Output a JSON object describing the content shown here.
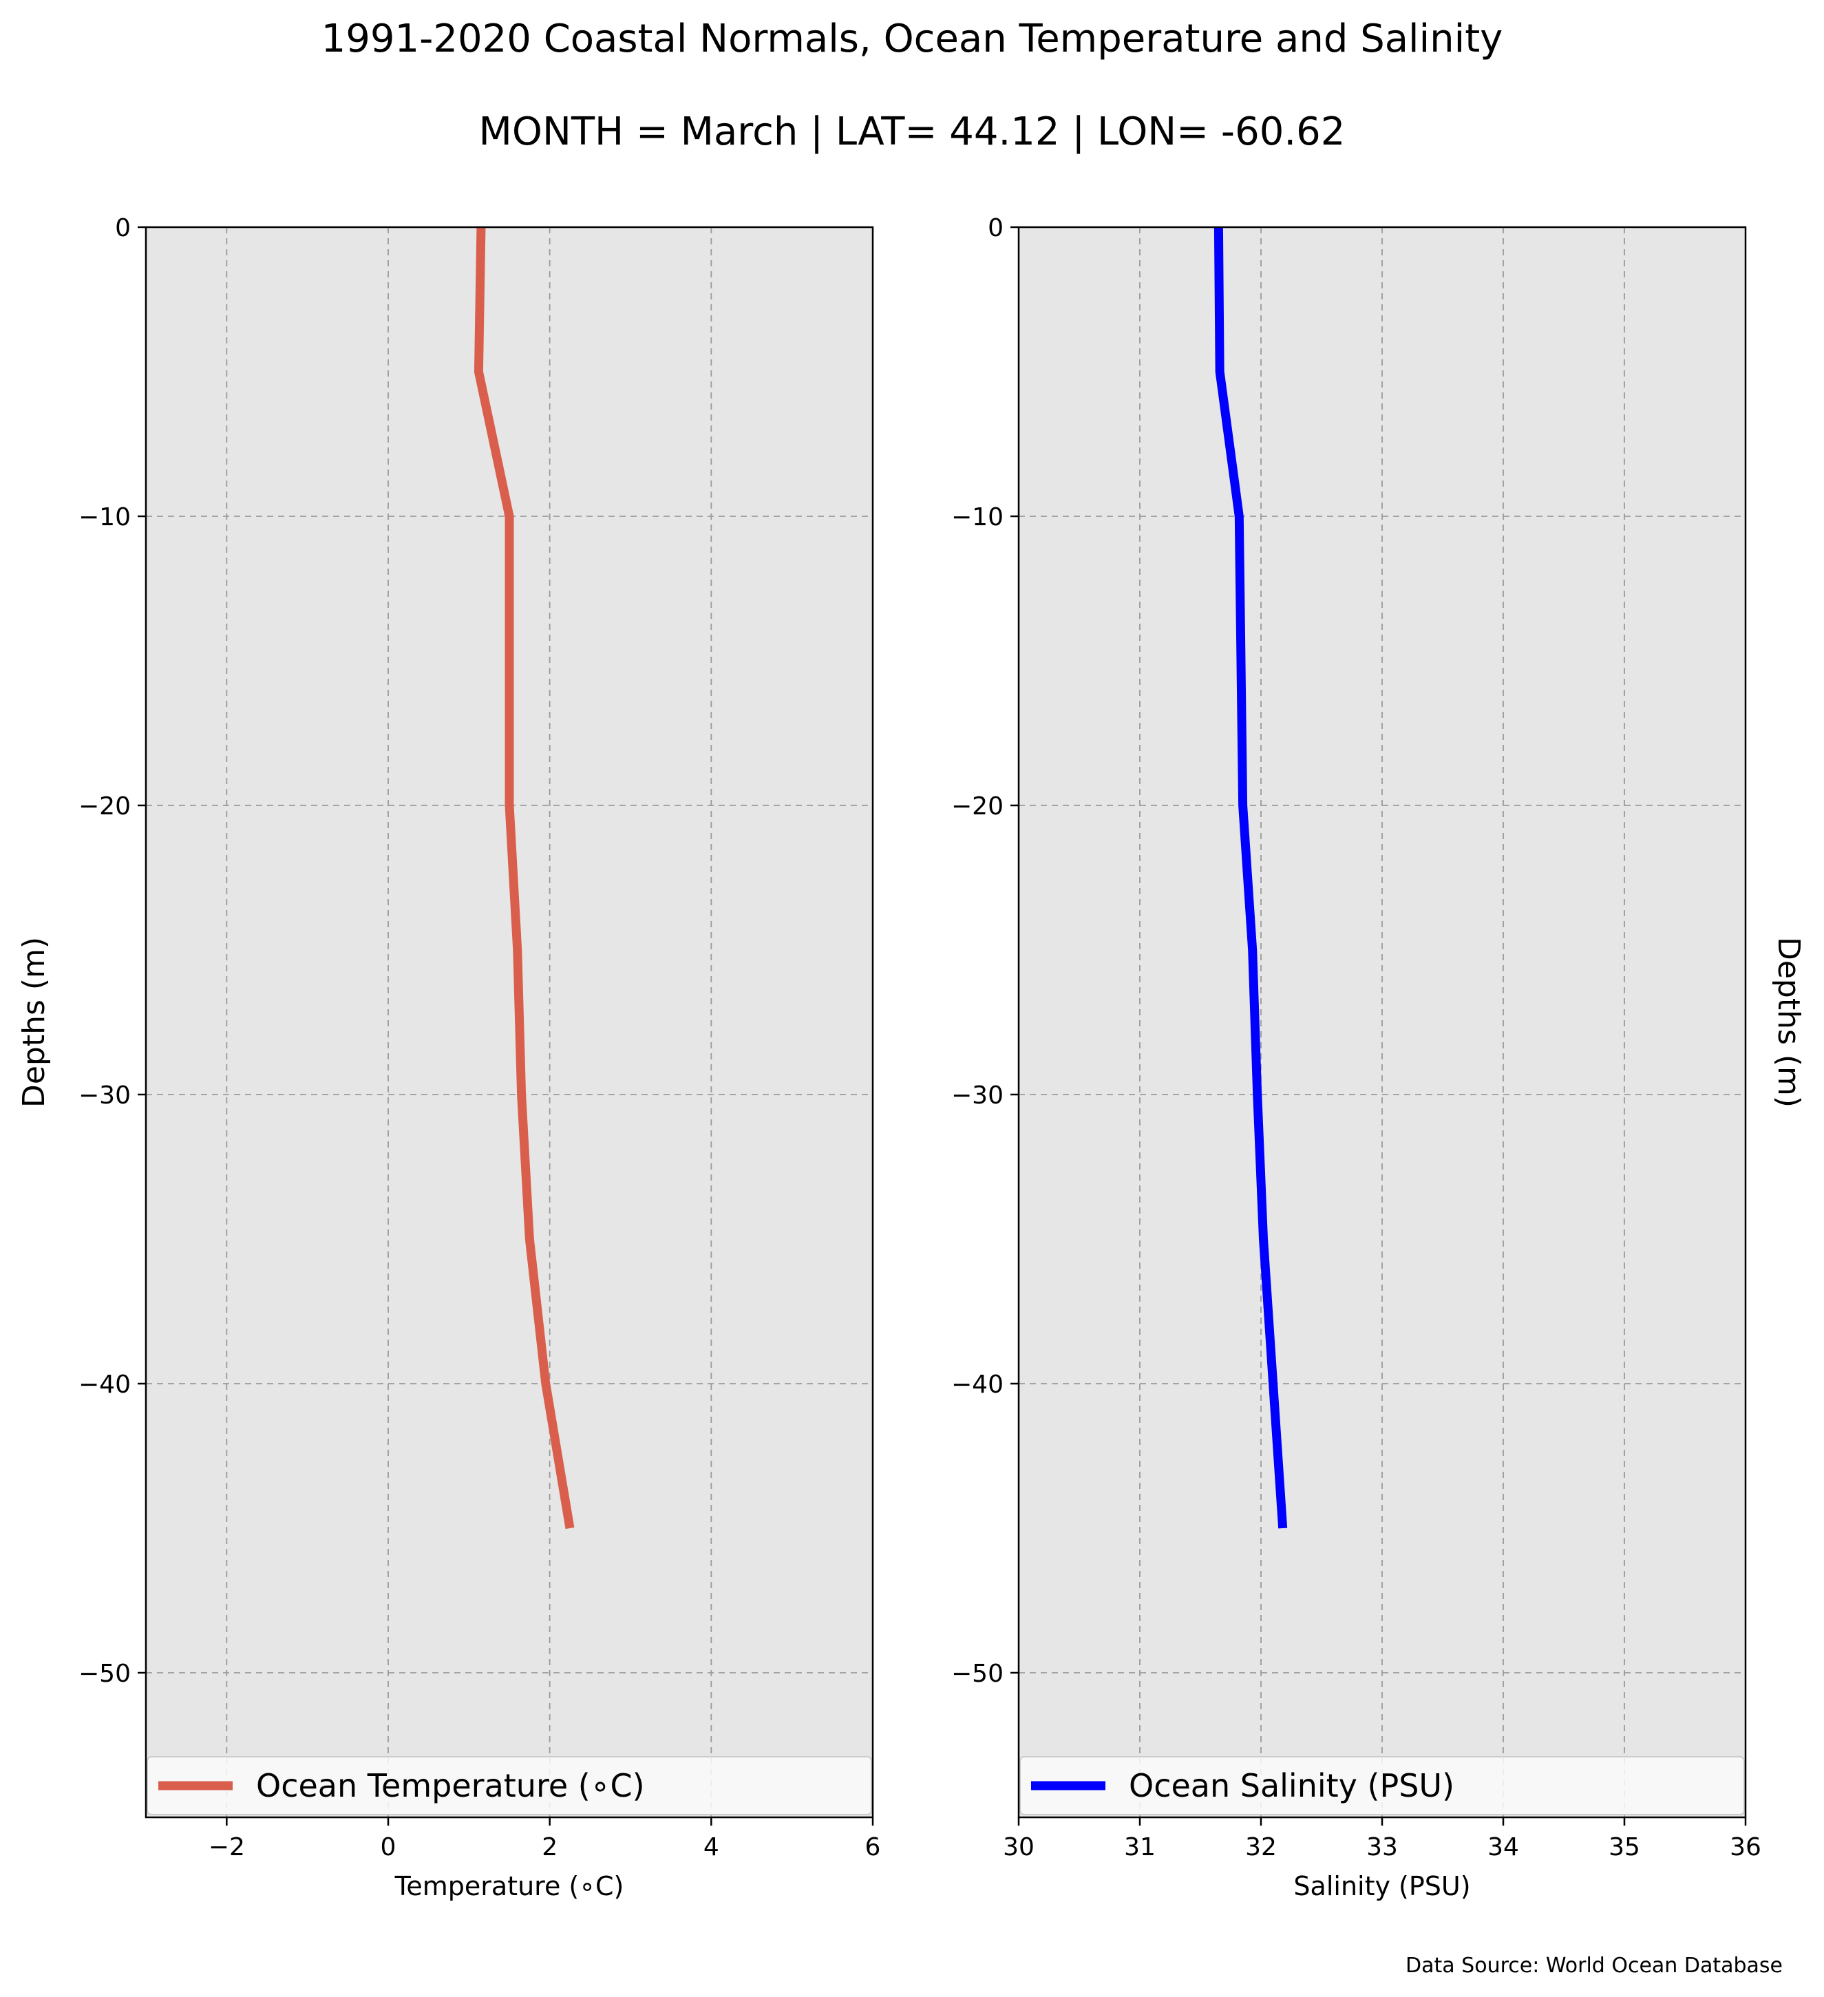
{
  "figure": {
    "title": "1991-2020 Coastal Normals, Ocean Temperature and Salinity",
    "subtitle": "MONTH = March | LAT= 44.12 | LON= -60.62",
    "source": "Data Source: World Ocean Database"
  },
  "chart_data": [
    {
      "type": "line",
      "xlabel": "Temperature (∘C)",
      "ylabel": "Depths (m)",
      "ylabel_side": "left",
      "xlim": [
        -3,
        6
      ],
      "ylim": [
        -55,
        0
      ],
      "xticks": [
        -2,
        0,
        2,
        4,
        6
      ],
      "xtick_labels": [
        "−2",
        "0",
        "2",
        "4",
        "6"
      ],
      "yticks": [
        0,
        -10,
        -20,
        -30,
        -40,
        -50
      ],
      "ytick_labels": [
        "0",
        "−10",
        "−20",
        "−30",
        "−40",
        "−50"
      ],
      "grid": true,
      "legend_position": "bottom",
      "series": [
        {
          "name": "Ocean Temperature (∘C)",
          "color": "#d95f4c",
          "x": [
            1.15,
            1.12,
            1.5,
            1.5,
            1.6,
            1.65,
            1.75,
            1.95,
            2.25
          ],
          "y": [
            0,
            -5,
            -10,
            -20,
            -25,
            -30,
            -35,
            -40,
            -45
          ]
        }
      ]
    },
    {
      "type": "line",
      "xlabel": "Salinity (PSU)",
      "ylabel": "Depths (m)",
      "ylabel_side": "right",
      "xlim": [
        30,
        36
      ],
      "ylim": [
        -55,
        0
      ],
      "xticks": [
        30,
        31,
        32,
        33,
        34,
        35,
        36
      ],
      "xtick_labels": [
        "30",
        "31",
        "32",
        "33",
        "34",
        "35",
        "36"
      ],
      "yticks": [
        0,
        -10,
        -20,
        -30,
        -40,
        -50
      ],
      "ytick_labels": [
        "0",
        "−10",
        "−20",
        "−30",
        "−40",
        "−50"
      ],
      "grid": true,
      "legend_position": "bottom",
      "series": [
        {
          "name": "Ocean Salinity (PSU)",
          "color": "#0000ff",
          "x": [
            31.65,
            31.66,
            31.82,
            31.85,
            31.93,
            31.97,
            32.02,
            32.1,
            32.18
          ],
          "y": [
            0,
            -5,
            -10,
            -20,
            -25,
            -30,
            -35,
            -40,
            -45
          ]
        }
      ]
    }
  ]
}
